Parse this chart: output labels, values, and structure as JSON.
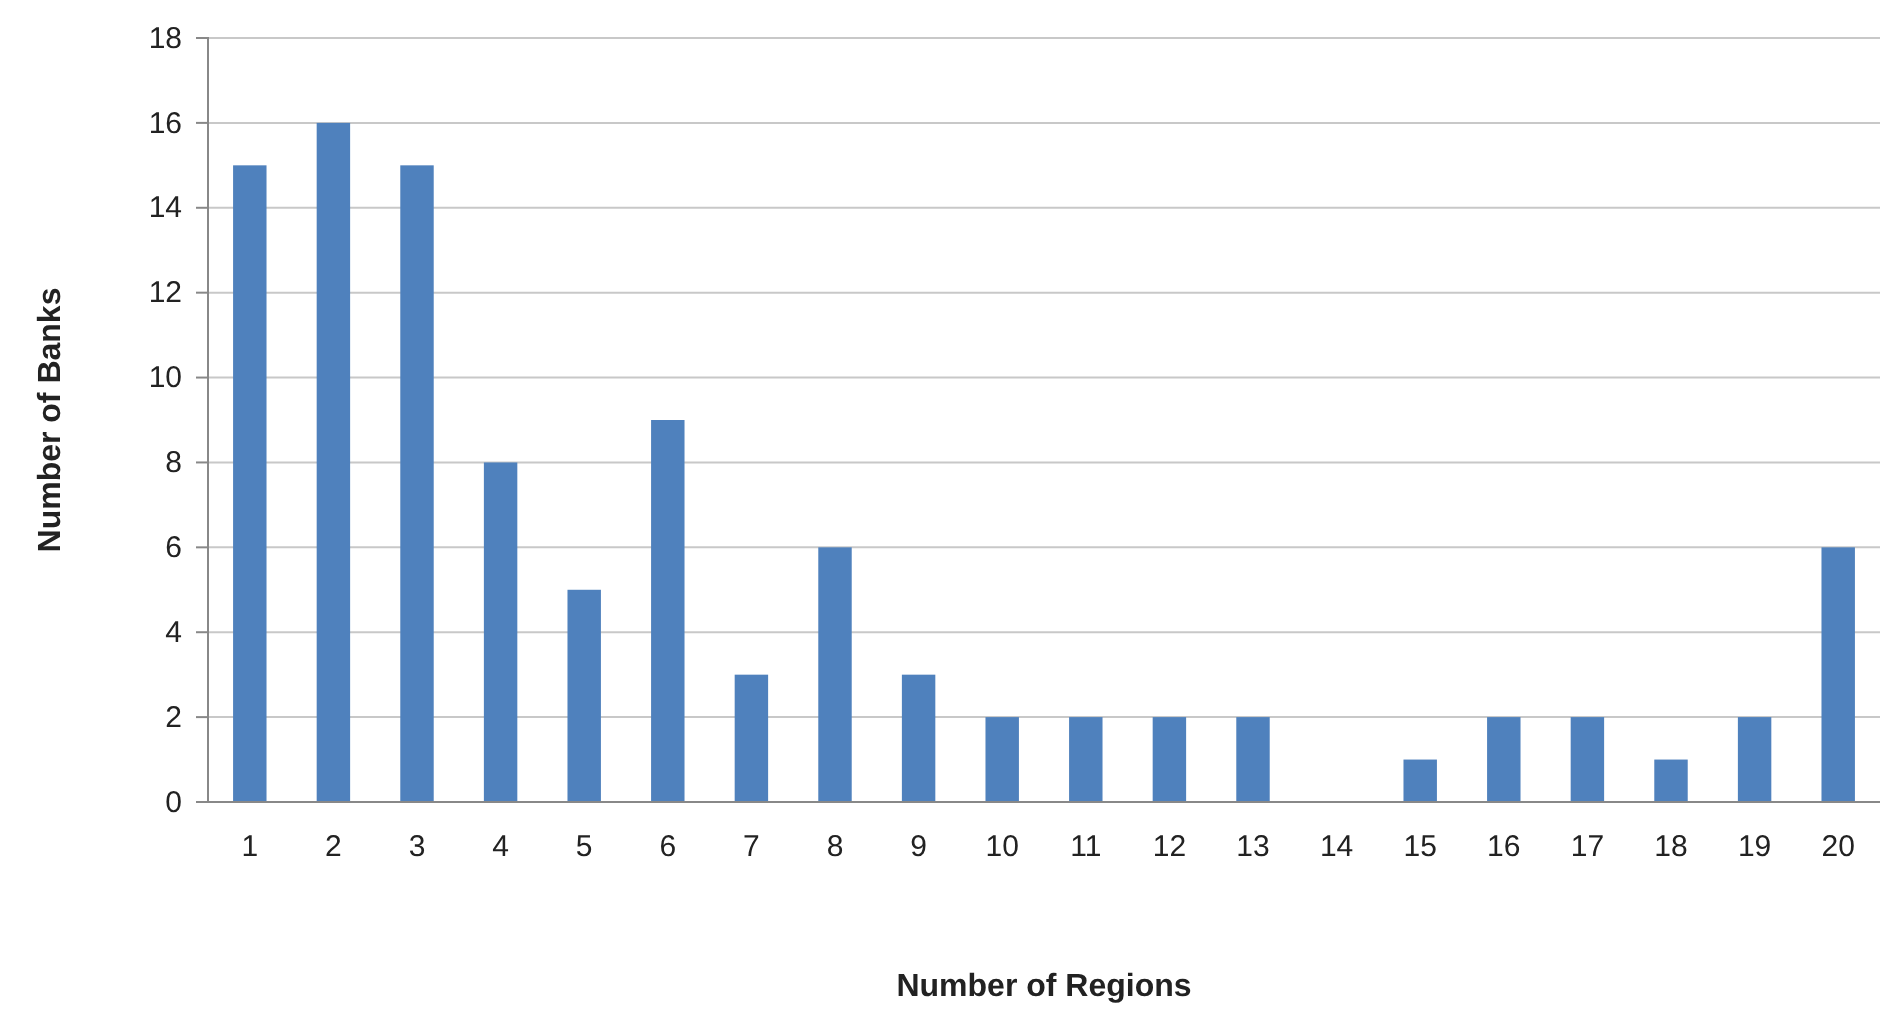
{
  "chart_data": {
    "type": "bar",
    "xlabel": "Number of Regions",
    "ylabel": "Number of Banks",
    "categories": [
      "1",
      "2",
      "3",
      "4",
      "5",
      "6",
      "7",
      "8",
      "9",
      "10",
      "11",
      "12",
      "13",
      "14",
      "15",
      "16",
      "17",
      "18",
      "19",
      "20"
    ],
    "values": [
      15,
      16,
      15,
      8,
      5,
      9,
      3,
      6,
      3,
      2,
      2,
      2,
      2,
      0,
      1,
      2,
      2,
      1,
      2,
      6
    ],
    "color": "#4f81bd",
    "ylim": [
      0,
      18
    ],
    "yticks": [
      0,
      2,
      4,
      6,
      8,
      10,
      12,
      14,
      16,
      18
    ],
    "grid": "y"
  }
}
